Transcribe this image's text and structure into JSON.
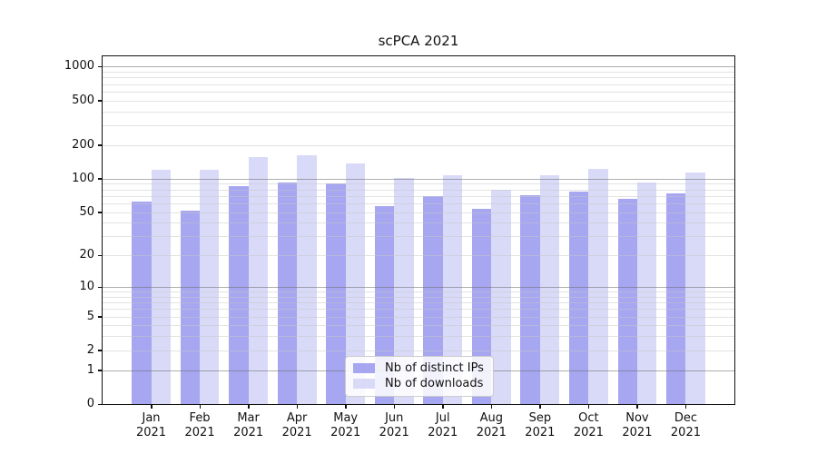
{
  "chart_data": {
    "type": "bar",
    "title": "scPCA 2021",
    "categories": [
      "Jan",
      "Feb",
      "Mar",
      "Apr",
      "May",
      "Jun",
      "Jul",
      "Aug",
      "Sep",
      "Oct",
      "Nov",
      "Dec"
    ],
    "year_label": "2021",
    "series": [
      {
        "name": "Nb of distinct IPs",
        "color": "#a6a6f1",
        "values": [
          62,
          51,
          85,
          93,
          90,
          57,
          69,
          53,
          71,
          77,
          66,
          74
        ]
      },
      {
        "name": "Nb of downloads",
        "color": "#d9d9f8",
        "values": [
          120,
          121,
          155,
          162,
          137,
          101,
          107,
          79,
          108,
          122,
          92,
          113
        ]
      }
    ],
    "yscale": "log1p",
    "yticks": [
      0,
      1,
      2,
      5,
      10,
      20,
      50,
      100,
      200,
      500,
      1000
    ],
    "ylim": [
      0,
      1236
    ],
    "xlabel": "",
    "ylabel": "",
    "grid": {
      "major_levels": [
        1,
        10,
        100,
        1000
      ],
      "minor_per_decade": [
        2,
        3,
        4,
        5,
        6,
        7,
        8,
        9
      ]
    },
    "legend_position": "lower center",
    "colors": {
      "axis": "#111111",
      "major_grid": "rgba(110,110,110,0.55)",
      "minor_grid": "rgba(200,200,200,0.5)"
    }
  }
}
